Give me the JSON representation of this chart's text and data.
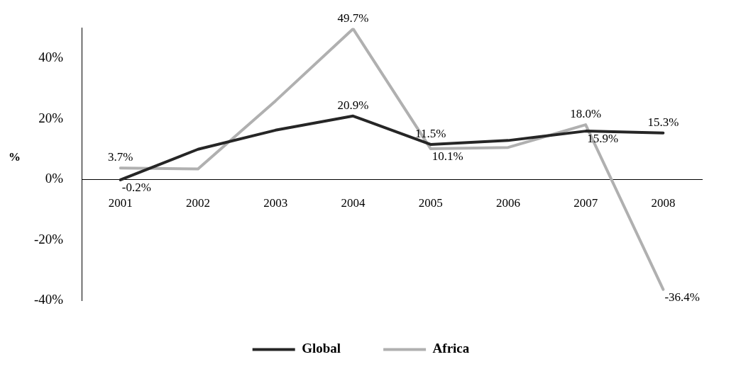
{
  "chart_data": {
    "type": "line",
    "ylabel": "%",
    "categories": [
      "2001",
      "2002",
      "2003",
      "2004",
      "2005",
      "2006",
      "2007",
      "2008"
    ],
    "series": [
      {
        "name": "Global",
        "color": "#262626",
        "values": [
          -0.2,
          9.9,
          16.2,
          20.9,
          11.5,
          12.8,
          15.9,
          15.3
        ],
        "value_labels": [
          "-0.2%",
          null,
          null,
          "20.9%",
          "11.5%",
          null,
          "15.9%",
          "15.3%"
        ]
      },
      {
        "name": "Africa",
        "color": "#b0b0b0",
        "values": [
          3.7,
          3.4,
          25.9,
          49.7,
          10.1,
          10.5,
          18.0,
          -36.4
        ],
        "value_labels": [
          "3.7%",
          null,
          null,
          "49.7%",
          "10.1%",
          null,
          "18.0%",
          "-36.4%"
        ]
      }
    ],
    "ylim": [
      -40,
      50
    ],
    "yticks": [
      {
        "value": -40,
        "label": "-40%"
      },
      {
        "value": -20,
        "label": "-20%"
      },
      {
        "value": 0,
        "label": "0%"
      },
      {
        "value": 20,
        "label": "20%"
      },
      {
        "value": 40,
        "label": "40%"
      }
    ],
    "grid": false,
    "legend": "bottom",
    "marker": "none",
    "line_style": "solid"
  }
}
